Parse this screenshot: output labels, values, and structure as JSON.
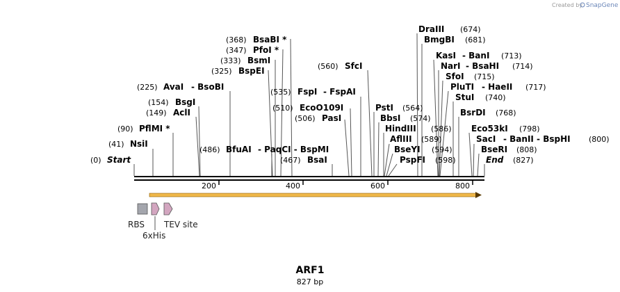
{
  "credit": {
    "prefix": "Created by",
    "brand": "SnapGene"
  },
  "construct": {
    "name": "ARF1",
    "length_label": "827 bp"
  },
  "scale": {
    "ticks": [
      "200",
      "400",
      "600",
      "800"
    ]
  },
  "features": [
    {
      "name": "RBS",
      "color": "#a4a6ad",
      "shape": "box"
    },
    {
      "name": "6xHis",
      "color": "#d3a6c0",
      "shape": "arrow"
    },
    {
      "name": "TEV site",
      "color": "#d3a6c0",
      "shape": "arrow"
    }
  ],
  "orf": {
    "color": "#f0b84a",
    "direction": "forward"
  },
  "sites": [
    {
      "pos": "(0)",
      "name": "Start",
      "kind": "terminus"
    },
    {
      "pos": "(41)",
      "name": "NsiI"
    },
    {
      "pos": "(90)",
      "name": "PflMI *"
    },
    {
      "pos": "(149)",
      "name": "AclI"
    },
    {
      "pos": "(154)",
      "name": "BsgI"
    },
    {
      "pos": "(225)",
      "name": "AvaI",
      "alt": "- BsoBI"
    },
    {
      "pos": "(486)",
      "name": "BfuAI",
      "alt": "- PaqCI - BspMI",
      "pos_first": true
    },
    {
      "pos": "(325)",
      "name": "BspEI"
    },
    {
      "pos": "(333)",
      "name": "BsmI"
    },
    {
      "pos": "(347)",
      "name": "PfoI *"
    },
    {
      "pos": "(368)",
      "name": "BsaBI *"
    },
    {
      "pos": "(467)",
      "name": "BsaI",
      "pos_first": true
    },
    {
      "pos": "(506)",
      "name": "PasI",
      "pos_first": true
    },
    {
      "pos": "(510)",
      "name": "EcoO109I",
      "pos_first": true
    },
    {
      "pos": "(535)",
      "name": "FspI",
      "alt": "- FspAI",
      "pos_first": true
    },
    {
      "pos": "(560)",
      "name": "SfcI",
      "pos_first": true
    },
    {
      "pos": "(564)",
      "name": "PstI"
    },
    {
      "pos": "(574)",
      "name": "BbsI"
    },
    {
      "pos": "(586)",
      "name": "HindIII"
    },
    {
      "pos": "(589)",
      "name": "AflIII"
    },
    {
      "pos": "(594)",
      "name": "BseYI"
    },
    {
      "pos": "(598)",
      "name": "PspFI"
    },
    {
      "pos": "(674)",
      "name": "DraIII"
    },
    {
      "pos": "(681)",
      "name": "BmgBI"
    },
    {
      "pos": "(713)",
      "name": "KasI",
      "alt": "- BanI"
    },
    {
      "pos": "(714)",
      "name": "NarI",
      "alt": "- BsaHI"
    },
    {
      "pos": "(715)",
      "name": "SfoI"
    },
    {
      "pos": "(717)",
      "name": "PluTI",
      "alt": "- HaeII"
    },
    {
      "pos": "(740)",
      "name": "StuI"
    },
    {
      "pos": "(768)",
      "name": "BsrDI"
    },
    {
      "pos": "(798)",
      "name": "Eco53kI"
    },
    {
      "pos": "(800)",
      "name": "SacI",
      "alt": "- BanII - BspHI"
    },
    {
      "pos": "(808)",
      "name": "BseRI"
    },
    {
      "pos": "(827)",
      "name": "End",
      "kind": "terminus"
    }
  ]
}
